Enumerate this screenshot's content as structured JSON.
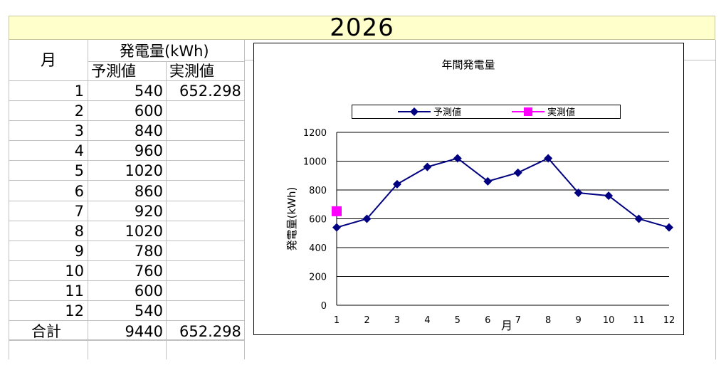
{
  "year": "2026",
  "table": {
    "month_header": "月",
    "energy_header": "発電量(kWh)",
    "forecast_header": "予測値",
    "actual_header": "実測値",
    "rows": [
      {
        "month": "1",
        "forecast": "540",
        "actual": "652.298"
      },
      {
        "month": "2",
        "forecast": "600",
        "actual": ""
      },
      {
        "month": "3",
        "forecast": "840",
        "actual": ""
      },
      {
        "month": "4",
        "forecast": "960",
        "actual": ""
      },
      {
        "month": "5",
        "forecast": "1020",
        "actual": ""
      },
      {
        "month": "6",
        "forecast": "860",
        "actual": ""
      },
      {
        "month": "7",
        "forecast": "920",
        "actual": ""
      },
      {
        "month": "8",
        "forecast": "1020",
        "actual": ""
      },
      {
        "month": "9",
        "forecast": "780",
        "actual": ""
      },
      {
        "month": "10",
        "forecast": "760",
        "actual": ""
      },
      {
        "month": "11",
        "forecast": "600",
        "actual": ""
      },
      {
        "month": "12",
        "forecast": "540",
        "actual": ""
      }
    ],
    "total_label": "合計",
    "total_forecast": "9440",
    "total_actual": "652.298"
  },
  "chart_data": {
    "type": "line",
    "title": "年間発電量",
    "xlabel": "月",
    "ylabel": "発電量(kWh)",
    "categories": [
      "1",
      "2",
      "3",
      "4",
      "5",
      "6",
      "7",
      "8",
      "9",
      "10",
      "11",
      "12"
    ],
    "series": [
      {
        "name": "予測値",
        "values": [
          540,
          600,
          840,
          960,
          1020,
          860,
          920,
          1020,
          780,
          760,
          600,
          540
        ],
        "color": "#000080",
        "marker": "diamond"
      },
      {
        "name": "実測値",
        "values": [
          652.298,
          null,
          null,
          null,
          null,
          null,
          null,
          null,
          null,
          null,
          null,
          null
        ],
        "color": "#ff00ff",
        "marker": "square"
      }
    ],
    "ylim": [
      0,
      1200
    ],
    "yticks": [
      "0",
      "200",
      "400",
      "600",
      "800",
      "1000",
      "1200"
    ],
    "grid": true,
    "legend_position": "top"
  }
}
